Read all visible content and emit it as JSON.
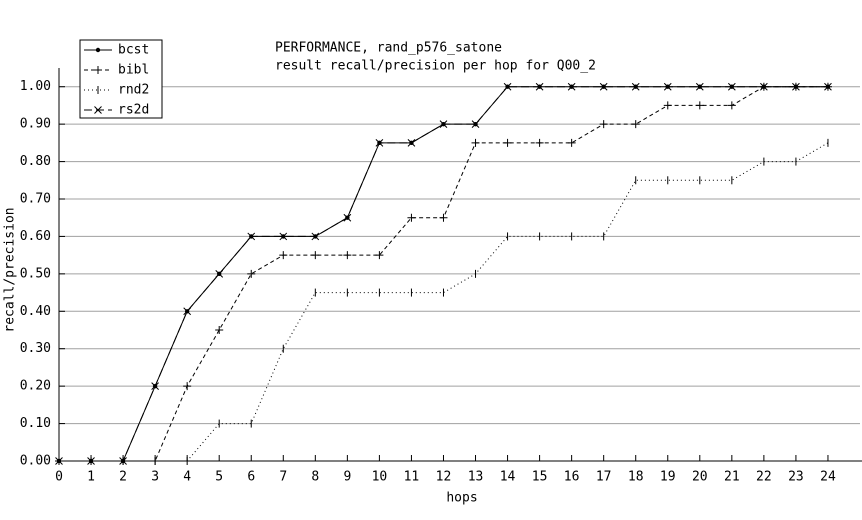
{
  "chart_data": {
    "type": "line",
    "title": "PERFORMANCE, rand_p576_satone",
    "subtitle": "result recall/precision per hop for Q00_2",
    "x_label": "hops",
    "y_label": "recall/precision",
    "x": [
      0,
      1,
      2,
      3,
      4,
      5,
      6,
      7,
      8,
      9,
      10,
      11,
      12,
      13,
      14,
      15,
      16,
      17,
      18,
      19,
      20,
      21,
      22,
      23,
      24
    ],
    "series": [
      {
        "name": "bcst",
        "color": "#000000",
        "marker": "dot",
        "line_style": "solid",
        "values": [
          0,
          0,
          0,
          0.2,
          0.4,
          0.5,
          0.6,
          0.6,
          0.6,
          0.65,
          0.85,
          0.85,
          0.9,
          0.9,
          1,
          1,
          1,
          1,
          1,
          1,
          1,
          1,
          1,
          1,
          1
        ]
      },
      {
        "name": "bibl",
        "color": "#000000",
        "marker": "plus",
        "line_style": "dashed",
        "values": [
          0,
          0,
          0,
          0,
          0.2,
          0.35,
          0.5,
          0.55,
          0.55,
          0.55,
          0.55,
          0.65,
          0.65,
          0.85,
          0.85,
          0.85,
          0.85,
          0.9,
          0.9,
          0.95,
          0.95,
          0.95,
          1,
          1,
          1
        ]
      },
      {
        "name": "rnd2",
        "color": "#000000",
        "marker": "bar",
        "line_style": "dotted",
        "values": [
          0,
          0,
          0,
          0,
          0,
          0.1,
          0.1,
          0.3,
          0.45,
          0.45,
          0.45,
          0.45,
          0.45,
          0.5,
          0.6,
          0.6,
          0.6,
          0.6,
          0.75,
          0.75,
          0.75,
          0.75,
          0.8,
          0.8,
          0.85
        ]
      },
      {
        "name": "rs2d",
        "color": "#000000",
        "marker": "cross",
        "line_style": "long-dashed",
        "values": [
          0,
          0,
          0,
          0.2,
          0.4,
          0.5,
          0.6,
          0.6,
          0.6,
          0.65,
          0.85,
          0.85,
          0.9,
          0.9,
          1,
          1,
          1,
          1,
          1,
          1,
          1,
          1,
          1,
          1,
          1
        ]
      }
    ],
    "xlim": [
      0,
      25
    ],
    "xticks": [
      0,
      1,
      2,
      3,
      4,
      5,
      6,
      7,
      8,
      9,
      10,
      11,
      12,
      13,
      14,
      15,
      16,
      17,
      18,
      19,
      20,
      21,
      22,
      23,
      24
    ],
    "ylim": [
      0,
      1.05
    ],
    "yticks": [
      {
        "value": 0,
        "label": "0.00"
      },
      {
        "value": 0.1,
        "label": "0.10"
      },
      {
        "value": 0.2,
        "label": "0.20"
      },
      {
        "value": 0.3,
        "label": "0.30"
      },
      {
        "value": 0.4,
        "label": "0.40"
      },
      {
        "value": 0.5,
        "label": "0.50"
      },
      {
        "value": 0.6,
        "label": "0.60"
      },
      {
        "value": 0.7,
        "label": "0.70"
      },
      {
        "value": 0.8,
        "label": "0.80"
      },
      {
        "value": 0.9,
        "label": "0.90"
      },
      {
        "value": 1,
        "label": "1.00"
      }
    ],
    "grid": true,
    "legend": "top-left"
  }
}
